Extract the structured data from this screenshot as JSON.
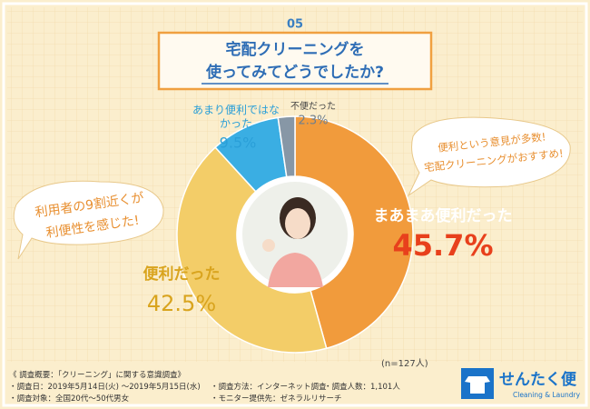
{
  "number": "05",
  "chart_data": {
    "type": "pie",
    "title_lines": [
      "宅配クリーニングを",
      "使ってみてどうでしたか?"
    ],
    "categories": [
      "まあまあ便利だった",
      "便利だった",
      "あまり便利ではなかった",
      "不便だった"
    ],
    "values": [
      45.7,
      42.5,
      9.5,
      2.3
    ],
    "value_labels": [
      "45.7%",
      "42.5%",
      "9.5%",
      "2.3%"
    ],
    "colors": [
      "#f19b3c",
      "#f3cd68",
      "#3aaee3",
      "#8797a6"
    ],
    "sample_size": "(n=127人)"
  },
  "annotations": [
    {
      "lines": [
        "利用者の9割近くが",
        "利便性を感じた!"
      ]
    },
    {
      "lines": [
        "便利という意見が多数!",
        "宅配クリーニングがおすすめ!"
      ]
    }
  ],
  "survey": {
    "heading": "《 調査概要：「クリーニング」に関する意識調査》",
    "items": [
      "・調査日：2019年5月14日(火) ～2019年5月15日(水)",
      "・調査方法：インターネット調査",
      "・調査人数：1,101人",
      "・調査対象：全国20代～50代男女",
      "・モニター提供先：ゼネラルリサーチ"
    ]
  },
  "logo": {
    "name": "せんたく便",
    "tagline": "Cleaning & Laundry"
  }
}
